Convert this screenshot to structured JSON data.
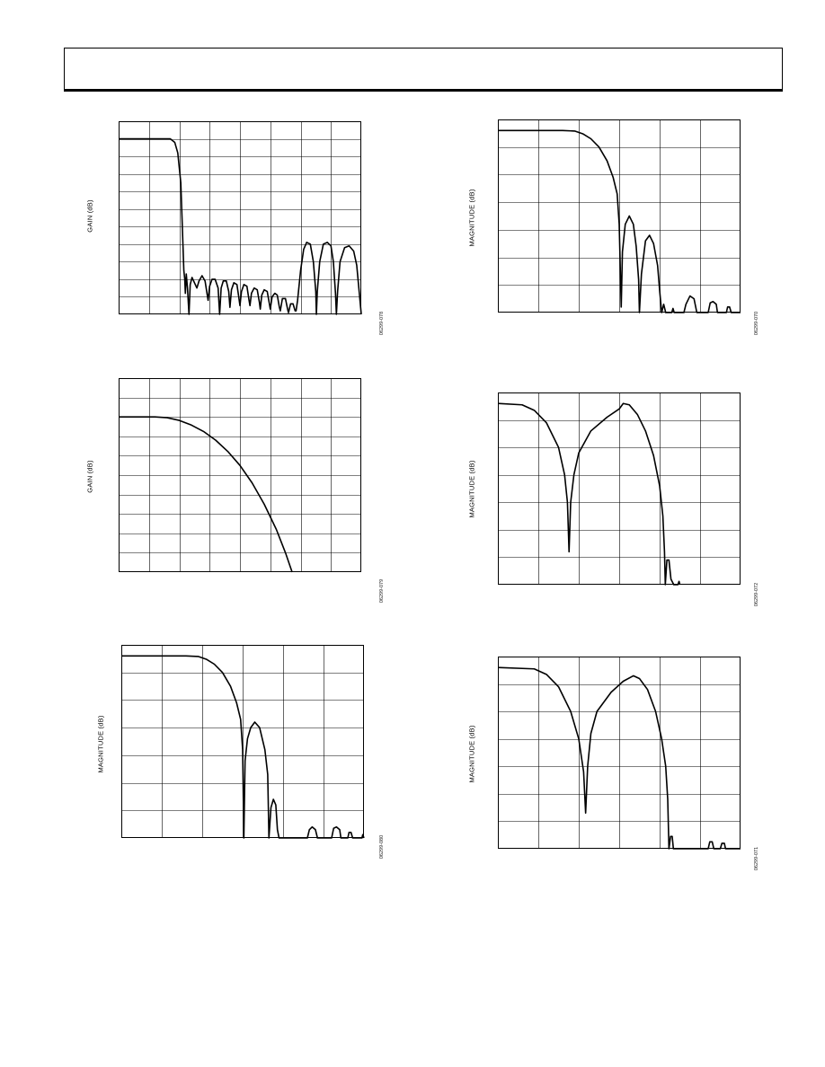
{
  "page": {
    "header": ""
  },
  "chart_data": [
    {
      "id": "p1",
      "type": "line",
      "ylabel": "GAIN (dB)",
      "figure_id": "06299-078",
      "grid": {
        "vcells": 8,
        "hcells": 11
      },
      "ylim": [
        0,
        11
      ],
      "xlim": [
        0,
        8
      ],
      "baseline": 10,
      "trace": [
        [
          0,
          10
        ],
        [
          1.7,
          10
        ],
        [
          1.85,
          9.8
        ],
        [
          1.95,
          9.2
        ],
        [
          2.05,
          7.5
        ],
        [
          2.1,
          5
        ],
        [
          2.15,
          2.5
        ],
        [
          2.18,
          2.0
        ],
        [
          2.2,
          1.2
        ],
        [
          2.23,
          2.3
        ],
        [
          2.27,
          1.5
        ],
        [
          2.32,
          0
        ],
        [
          2.36,
          1.7
        ],
        [
          2.42,
          2.1
        ],
        [
          2.5,
          1.8
        ],
        [
          2.58,
          1.5
        ],
        [
          2.65,
          1.9
        ],
        [
          2.75,
          2.2
        ],
        [
          2.85,
          1.9
        ],
        [
          2.95,
          0.8
        ],
        [
          3.0,
          1.6
        ],
        [
          3.08,
          2.0
        ],
        [
          3.18,
          2.0
        ],
        [
          3.28,
          1.5
        ],
        [
          3.33,
          0
        ],
        [
          3.38,
          1.5
        ],
        [
          3.45,
          1.9
        ],
        [
          3.55,
          1.9
        ],
        [
          3.63,
          1.3
        ],
        [
          3.67,
          0.4
        ],
        [
          3.72,
          1.4
        ],
        [
          3.8,
          1.8
        ],
        [
          3.9,
          1.7
        ],
        [
          3.96,
          1.0
        ],
        [
          4.0,
          0.5
        ],
        [
          4.05,
          1.3
        ],
        [
          4.13,
          1.7
        ],
        [
          4.23,
          1.6
        ],
        [
          4.3,
          0.8
        ],
        [
          4.33,
          0.5
        ],
        [
          4.38,
          1.2
        ],
        [
          4.47,
          1.5
        ],
        [
          4.57,
          1.4
        ],
        [
          4.64,
          0.7
        ],
        [
          4.67,
          0.3
        ],
        [
          4.72,
          1.1
        ],
        [
          4.8,
          1.4
        ],
        [
          4.9,
          1.3
        ],
        [
          4.97,
          0.6
        ],
        [
          5.0,
          0.3
        ],
        [
          5.06,
          1.0
        ],
        [
          5.15,
          1.2
        ],
        [
          5.23,
          1.1
        ],
        [
          5.3,
          0.4
        ],
        [
          5.33,
          0.2
        ],
        [
          5.4,
          0.9
        ],
        [
          5.5,
          0.9
        ],
        [
          5.57,
          0.3
        ],
        [
          5.6,
          0.1
        ],
        [
          5.67,
          0.6
        ],
        [
          5.75,
          0.6
        ],
        [
          5.82,
          0.2
        ],
        [
          5.85,
          0.2
        ],
        [
          5.9,
          0.8
        ],
        [
          6.0,
          2.5
        ],
        [
          6.1,
          3.7
        ],
        [
          6.2,
          4.1
        ],
        [
          6.32,
          4.0
        ],
        [
          6.42,
          3.0
        ],
        [
          6.5,
          1.3
        ],
        [
          6.52,
          0
        ],
        [
          6.55,
          1.3
        ],
        [
          6.63,
          3.0
        ],
        [
          6.75,
          4.0
        ],
        [
          6.88,
          4.1
        ],
        [
          7.0,
          3.9
        ],
        [
          7.08,
          3.0
        ],
        [
          7.15,
          1.2
        ],
        [
          7.18,
          0
        ],
        [
          7.22,
          1.3
        ],
        [
          7.3,
          3.0
        ],
        [
          7.45,
          3.8
        ],
        [
          7.6,
          3.9
        ],
        [
          7.75,
          3.6
        ],
        [
          7.85,
          2.8
        ],
        [
          7.93,
          1.3
        ],
        [
          8.0,
          0
        ]
      ]
    },
    {
      "id": "p2",
      "type": "line",
      "ylabel": "GAIN (dB)",
      "figure_id": "06299-079",
      "grid": {
        "vcells": 8,
        "hcells": 10
      },
      "ylim": [
        0,
        10
      ],
      "xlim": [
        0,
        8
      ],
      "baseline": 8,
      "trace": [
        [
          0,
          8
        ],
        [
          1.2,
          8
        ],
        [
          1.6,
          7.96
        ],
        [
          2.0,
          7.82
        ],
        [
          2.4,
          7.58
        ],
        [
          2.8,
          7.25
        ],
        [
          3.2,
          6.8
        ],
        [
          3.6,
          6.22
        ],
        [
          4.0,
          5.5
        ],
        [
          4.4,
          4.6
        ],
        [
          4.8,
          3.5
        ],
        [
          5.2,
          2.2
        ],
        [
          5.5,
          1.0
        ],
        [
          5.72,
          0
        ]
      ]
    },
    {
      "id": "p3",
      "type": "line",
      "ylabel": "MAGNITUDE (dB)",
      "figure_id": "06299-080",
      "grid": {
        "vcells": 6,
        "hcells": 7
      },
      "ylim": [
        0,
        7
      ],
      "xlim": [
        0,
        6
      ],
      "baseline": 6.6,
      "trace": [
        [
          0,
          6.6
        ],
        [
          1.6,
          6.6
        ],
        [
          1.9,
          6.58
        ],
        [
          2.1,
          6.48
        ],
        [
          2.3,
          6.3
        ],
        [
          2.5,
          6.0
        ],
        [
          2.7,
          5.5
        ],
        [
          2.85,
          4.9
        ],
        [
          2.95,
          4.3
        ],
        [
          3.0,
          3.2
        ],
        [
          3.03,
          0
        ],
        [
          3.06,
          2.8
        ],
        [
          3.12,
          3.6
        ],
        [
          3.2,
          4.0
        ],
        [
          3.3,
          4.2
        ],
        [
          3.42,
          4.0
        ],
        [
          3.55,
          3.2
        ],
        [
          3.62,
          2.3
        ],
        [
          3.65,
          0
        ],
        [
          3.7,
          1.1
        ],
        [
          3.76,
          1.4
        ],
        [
          3.82,
          1.2
        ],
        [
          3.86,
          0.3
        ],
        [
          3.9,
          0
        ],
        [
          4.6,
          0
        ],
        [
          4.65,
          0.3
        ],
        [
          4.72,
          0.4
        ],
        [
          4.8,
          0.3
        ],
        [
          4.85,
          0
        ],
        [
          5.2,
          0
        ],
        [
          5.25,
          0.35
        ],
        [
          5.32,
          0.4
        ],
        [
          5.4,
          0.3
        ],
        [
          5.43,
          0
        ],
        [
          5.6,
          0
        ],
        [
          5.63,
          0.2
        ],
        [
          5.68,
          0.2
        ],
        [
          5.72,
          0
        ],
        [
          5.95,
          0
        ],
        [
          5.97,
          0.12
        ],
        [
          6.0,
          0
        ]
      ]
    },
    {
      "id": "p4",
      "type": "line",
      "ylabel": "MAGNITUDE (dB)",
      "figure_id": "06299-070",
      "grid": {
        "vcells": 6,
        "hcells": 7
      },
      "ylim": [
        0,
        7
      ],
      "xlim": [
        0,
        6
      ],
      "baseline": 6.6,
      "trace": [
        [
          0,
          6.6
        ],
        [
          1.6,
          6.6
        ],
        [
          1.9,
          6.58
        ],
        [
          2.1,
          6.48
        ],
        [
          2.3,
          6.3
        ],
        [
          2.5,
          6.0
        ],
        [
          2.7,
          5.5
        ],
        [
          2.85,
          4.9
        ],
        [
          2.95,
          4.3
        ],
        [
          3.0,
          3.2
        ],
        [
          3.05,
          0.2
        ],
        [
          3.08,
          2.2
        ],
        [
          3.15,
          3.2
        ],
        [
          3.25,
          3.5
        ],
        [
          3.35,
          3.2
        ],
        [
          3.42,
          2.4
        ],
        [
          3.48,
          1.2
        ],
        [
          3.5,
          0
        ],
        [
          3.55,
          1.4
        ],
        [
          3.65,
          2.6
        ],
        [
          3.75,
          2.8
        ],
        [
          3.85,
          2.5
        ],
        [
          3.95,
          1.7
        ],
        [
          4.0,
          0.8
        ],
        [
          4.05,
          0
        ],
        [
          4.1,
          0.3
        ],
        [
          4.15,
          0
        ],
        [
          4.3,
          0
        ],
        [
          4.33,
          0.15
        ],
        [
          4.36,
          0
        ],
        [
          4.6,
          0
        ],
        [
          4.65,
          0.3
        ],
        [
          4.75,
          0.6
        ],
        [
          4.85,
          0.5
        ],
        [
          4.92,
          0
        ],
        [
          5.2,
          0
        ],
        [
          5.25,
          0.35
        ],
        [
          5.32,
          0.4
        ],
        [
          5.4,
          0.3
        ],
        [
          5.43,
          0
        ],
        [
          5.65,
          0
        ],
        [
          5.68,
          0.2
        ],
        [
          5.73,
          0.2
        ],
        [
          5.77,
          0
        ],
        [
          6.0,
          0
        ]
      ]
    },
    {
      "id": "p5",
      "type": "line",
      "ylabel": "MAGNITUDE (dB)",
      "figure_id": "06299-072",
      "grid": {
        "vcells": 6,
        "hcells": 7
      },
      "ylim": [
        0,
        7
      ],
      "xlim": [
        0,
        6
      ],
      "baseline": 6.6,
      "trace": [
        [
          0,
          6.6
        ],
        [
          0.6,
          6.55
        ],
        [
          0.9,
          6.35
        ],
        [
          1.2,
          5.9
        ],
        [
          1.5,
          5.0
        ],
        [
          1.65,
          4.0
        ],
        [
          1.72,
          3.0
        ],
        [
          1.76,
          1.2
        ],
        [
          1.8,
          3.0
        ],
        [
          1.88,
          4.0
        ],
        [
          2.0,
          4.8
        ],
        [
          2.3,
          5.6
        ],
        [
          2.7,
          6.1
        ],
        [
          3.0,
          6.4
        ],
        [
          3.1,
          6.6
        ],
        [
          3.25,
          6.55
        ],
        [
          3.45,
          6.2
        ],
        [
          3.65,
          5.6
        ],
        [
          3.85,
          4.7
        ],
        [
          4.0,
          3.6
        ],
        [
          4.08,
          2.5
        ],
        [
          4.12,
          1.2
        ],
        [
          4.14,
          0
        ],
        [
          4.18,
          0.9
        ],
        [
          4.23,
          0.9
        ],
        [
          4.28,
          0.2
        ],
        [
          4.35,
          0
        ],
        [
          4.45,
          0
        ],
        [
          4.48,
          0.12
        ],
        [
          4.5,
          0
        ]
      ]
    },
    {
      "id": "p6",
      "type": "line",
      "ylabel": "MAGNITUDE (dB)",
      "figure_id": "06299-071",
      "grid": {
        "vcells": 6,
        "hcells": 7
      },
      "ylim": [
        0,
        7
      ],
      "xlim": [
        0,
        6
      ],
      "baseline": 6.6,
      "trace": [
        [
          0,
          6.6
        ],
        [
          0.9,
          6.55
        ],
        [
          1.2,
          6.35
        ],
        [
          1.5,
          5.9
        ],
        [
          1.8,
          5.0
        ],
        [
          2.0,
          4.0
        ],
        [
          2.12,
          2.8
        ],
        [
          2.17,
          1.3
        ],
        [
          2.22,
          3.0
        ],
        [
          2.3,
          4.2
        ],
        [
          2.45,
          5.0
        ],
        [
          2.8,
          5.7
        ],
        [
          3.1,
          6.1
        ],
        [
          3.35,
          6.3
        ],
        [
          3.5,
          6.2
        ],
        [
          3.7,
          5.8
        ],
        [
          3.9,
          5.0
        ],
        [
          4.05,
          4.0
        ],
        [
          4.15,
          3.0
        ],
        [
          4.2,
          1.8
        ],
        [
          4.23,
          0
        ],
        [
          4.27,
          0.45
        ],
        [
          4.31,
          0.45
        ],
        [
          4.34,
          0
        ],
        [
          5.2,
          0
        ],
        [
          5.24,
          0.25
        ],
        [
          5.3,
          0.25
        ],
        [
          5.34,
          0
        ],
        [
          5.5,
          0
        ],
        [
          5.54,
          0.2
        ],
        [
          5.6,
          0.2
        ],
        [
          5.63,
          0
        ],
        [
          6.0,
          0
        ]
      ]
    }
  ]
}
